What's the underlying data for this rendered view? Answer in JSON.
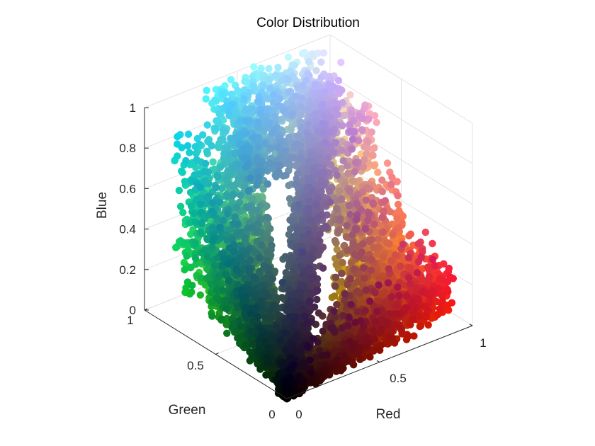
{
  "chart_data": {
    "type": "scatter",
    "projection": "3d",
    "title": "Color Distribution",
    "xlabel": "Red",
    "ylabel": "Green",
    "zlabel": "Blue",
    "xlim": [
      0,
      1
    ],
    "ylim": [
      0,
      1
    ],
    "zlim": [
      0,
      1
    ],
    "x_ticks": [
      "0",
      "0.5",
      "1"
    ],
    "y_ticks": [
      "0",
      "0.5",
      "1"
    ],
    "z_ticks": [
      "0",
      "0.2",
      "0.4",
      "0.6",
      "0.8",
      "1"
    ],
    "grid": true,
    "legend": "none",
    "marker_color_rule": "each point is colored by its own (red, green, blue) coordinates",
    "cluster_samples": [
      {
        "region": "dark core",
        "red": 0.05,
        "green": 0.05,
        "blue": 0.02
      },
      {
        "region": "red arm",
        "red": 0.85,
        "green": 0.2,
        "blue": 0.05
      },
      {
        "region": "orange arm",
        "red": 0.9,
        "green": 0.45,
        "blue": 0.15
      },
      {
        "region": "green column",
        "red": 0.2,
        "green": 0.55,
        "blue": 0.3
      },
      {
        "region": "cyan top",
        "red": 0.55,
        "green": 0.85,
        "blue": 0.95
      },
      {
        "region": "grey-violet ridge",
        "red": 0.45,
        "green": 0.4,
        "blue": 0.55
      }
    ]
  }
}
